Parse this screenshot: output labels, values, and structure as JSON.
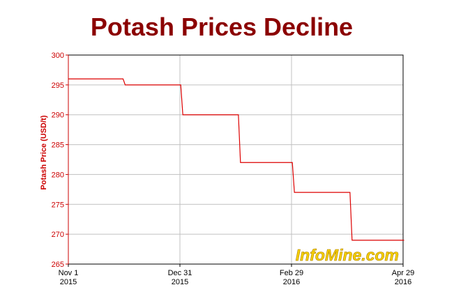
{
  "chart_data": {
    "type": "line",
    "step": true,
    "title": "Potash Prices Decline",
    "xlabel": "",
    "ylabel": "Potash Price (USD/t)",
    "xlim": [
      "2015-11-01",
      "2016-04-29"
    ],
    "ylim": [
      265,
      300
    ],
    "y_ticks": [
      265,
      270,
      275,
      280,
      285,
      290,
      295,
      300
    ],
    "x_ticks": [
      {
        "date": "2015-11-01",
        "label": [
          "Nov 1",
          "2015"
        ]
      },
      {
        "date": "2015-12-31",
        "label": [
          "Dec 31",
          "2015"
        ]
      },
      {
        "date": "2016-02-29",
        "label": [
          "Feb 29",
          "2016"
        ]
      },
      {
        "date": "2016-04-29",
        "label": [
          "Apr 29",
          "2016"
        ]
      }
    ],
    "grid": true,
    "line_color": "#dd0000",
    "series": [
      {
        "points": [
          {
            "x": "2015-11-01",
            "y": 296
          },
          {
            "x": "2015-12-01",
            "y": 295
          },
          {
            "x": "2016-01-01",
            "y": 290
          },
          {
            "x": "2016-02-01",
            "y": 282
          },
          {
            "x": "2016-03-01",
            "y": 277
          },
          {
            "x": "2016-04-01",
            "y": 269
          },
          {
            "x": "2016-04-29",
            "y": 269
          }
        ]
      }
    ],
    "watermark": "InfoMine.com"
  }
}
